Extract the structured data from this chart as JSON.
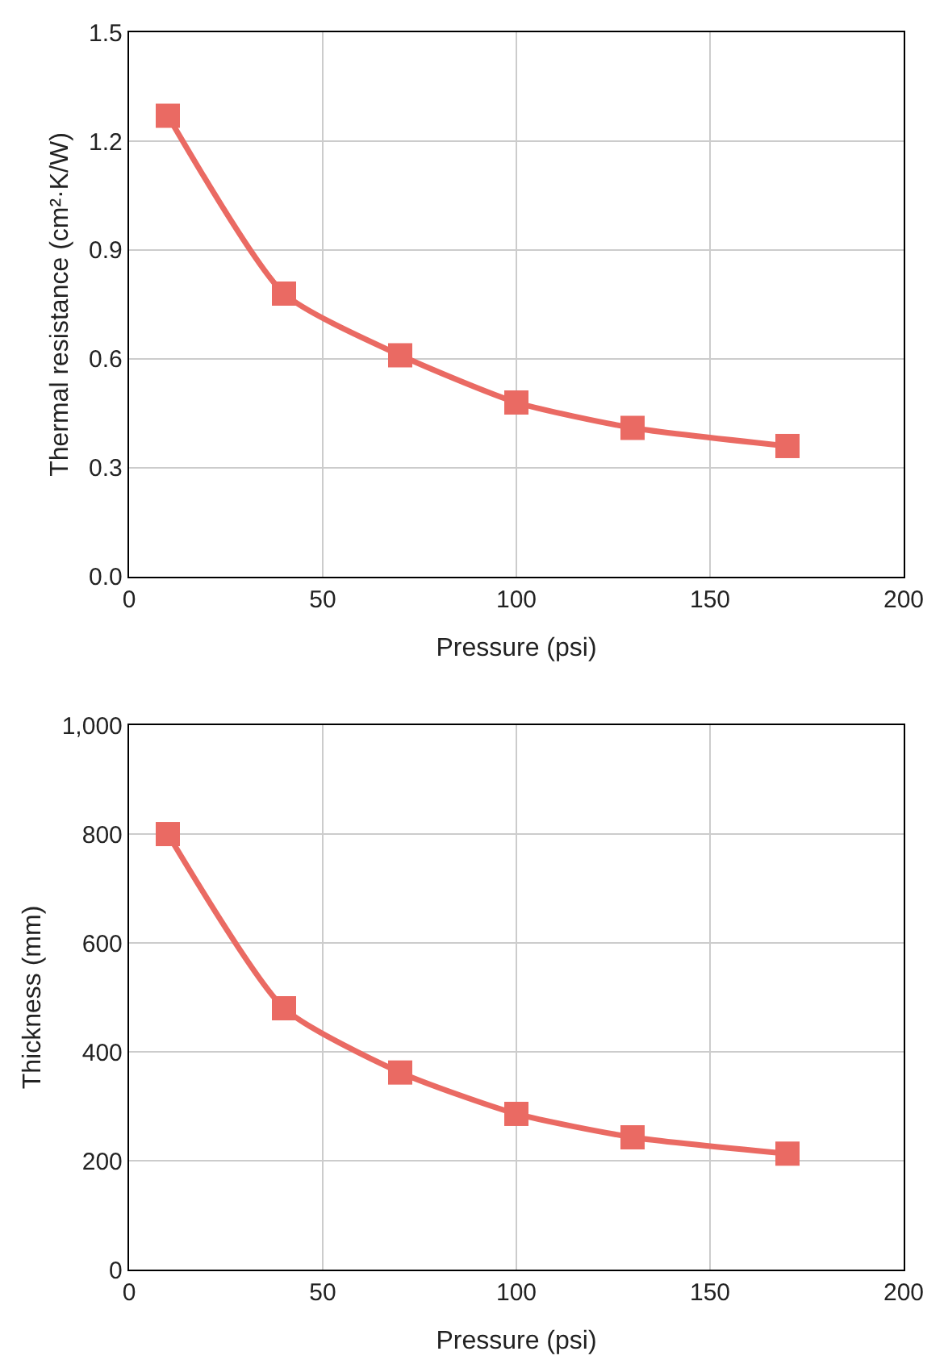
{
  "chart_data": [
    {
      "type": "line",
      "xlabel": "Pressure (psi)",
      "ylabel": "Thermal resistance (cm²·K/W)",
      "x": [
        10,
        40,
        70,
        100,
        130,
        170
      ],
      "series": [
        {
          "color": "#ea6a63",
          "values": [
            1.27,
            0.78,
            0.61,
            0.48,
            0.41,
            0.36
          ]
        }
      ],
      "xlim": [
        0,
        200
      ],
      "xticks": [
        0,
        50,
        100,
        150,
        200
      ],
      "ylim": [
        0,
        1.5
      ],
      "yticks": [
        {
          "value": 0,
          "label": "0.0"
        },
        0.3,
        0.6,
        0.9,
        1.2,
        1.5
      ],
      "grid": true,
      "marker": "square",
      "line_style": "solid"
    },
    {
      "type": "line",
      "xlabel": "Pressure (psi)",
      "ylabel": "Thickness (mm)",
      "x": [
        10,
        40,
        70,
        100,
        130,
        170
      ],
      "series": [
        {
          "color": "#ea6a63",
          "values": [
            800,
            480,
            362,
            286,
            243,
            213
          ]
        }
      ],
      "xlim": [
        0,
        200
      ],
      "xticks": [
        0,
        50,
        100,
        150,
        200
      ],
      "ylim": [
        0,
        1000
      ],
      "yticks": [
        0,
        200,
        400,
        600,
        800,
        {
          "value": 1000,
          "label": "1,000"
        }
      ],
      "grid": true,
      "marker": "square",
      "line_style": "solid"
    }
  ]
}
